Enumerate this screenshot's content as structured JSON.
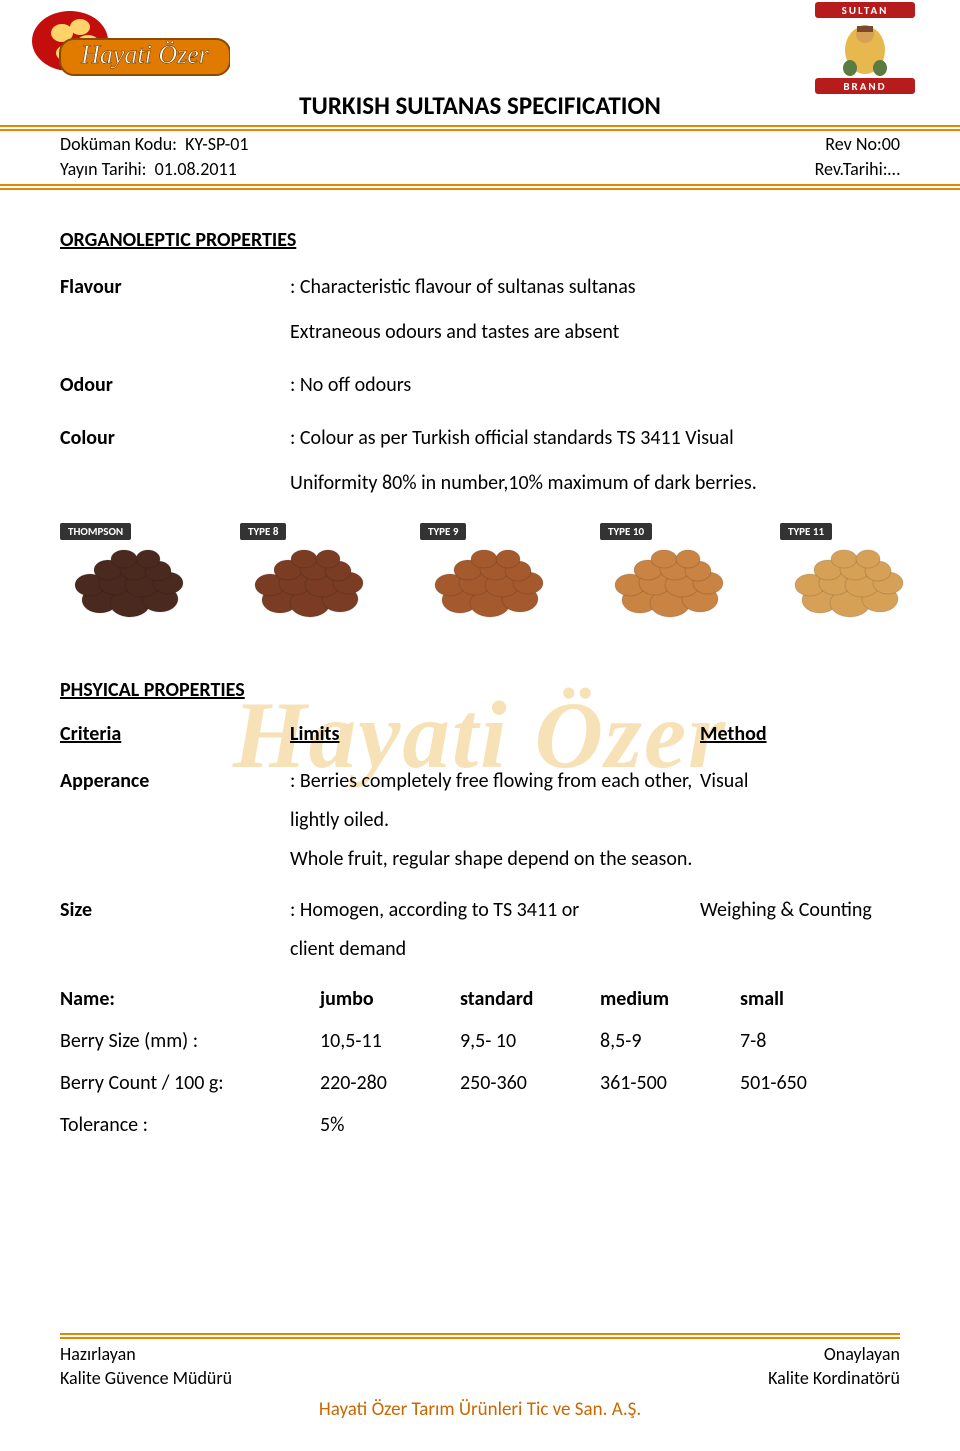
{
  "header": {
    "title": "TURKISH SULTANAS SPECIFICATION",
    "doc_code_label": "Doküman Kodu:",
    "doc_code": "KY-SP-01",
    "rev_no_label": "Rev No:",
    "rev_no": "00",
    "pub_date_label": "Yayın Tarihi:",
    "pub_date": "01.08.2011",
    "rev_date_label": "Rev.Tarihi:",
    "rev_date": "…",
    "logo_left": {
      "brand": "Hayati Özer",
      "bg_colors": [
        "#e07b00",
        "#c40d0d",
        "#ffd36a"
      ]
    },
    "logo_right": {
      "top": "SULTAN",
      "bottom": "BRAND",
      "banner_color": "#b71c1c",
      "figure_colors": [
        "#e7b84e",
        "#7a4a2a",
        "#5a7b42"
      ]
    }
  },
  "watermark_text": "Hayati Özer",
  "watermark_color": "rgba(230,165,30,0.32)",
  "organoleptic": {
    "title": "ORGANOLEPTIC PROPERTIES",
    "rows": [
      {
        "label": "Flavour",
        "value": ": Characteristic flavour of sultanas sultanas",
        "extra": "Extraneous odours and tastes are absent"
      },
      {
        "label": "Odour",
        "value": ": No off odours"
      },
      {
        "label": "Colour",
        "value": ": Colour as per Turkish official standards TS 3411 Visual",
        "extra": "Uniformity 80% in number,10% maximum of dark berries."
      }
    ]
  },
  "sultana_types": [
    {
      "label": "THOMPSON",
      "color": "#4a2a1f"
    },
    {
      "label": "TYPE 8",
      "color": "#7a3d24"
    },
    {
      "label": "TYPE 9",
      "color": "#a55a2e"
    },
    {
      "label": "TYPE 10",
      "color": "#c98342"
    },
    {
      "label": "TYPE 11",
      "color": "#d6a157"
    }
  ],
  "physical": {
    "title": "PHSYICAL PROPERTIES",
    "headers": {
      "c1": "Criteria",
      "c2": "Limits",
      "c3": "Method"
    },
    "rows": [
      {
        "label": "Apperance",
        "value": ": Berries completely free flowing from each other,",
        "method": "Visual",
        "extra1": "lightly oiled.",
        "extra2": "Whole fruit, regular shape depend on the season."
      },
      {
        "label": "Size",
        "value": ": Homogen, according to TS 3411 or",
        "method": "Weighing & Counting",
        "extra1": "client demand"
      }
    ]
  },
  "size_table": {
    "name_label": "Name:",
    "names": [
      "jumbo",
      "standard",
      "medium",
      "small"
    ],
    "rows": [
      {
        "label": "Berry Size (mm)    :",
        "values": [
          "10,5-11",
          "9,5- 10",
          "8,5-9",
          "7-8"
        ]
      },
      {
        "label": "Berry Count / 100 g:",
        "values": [
          "220-280",
          "250-360",
          "361-500",
          "501-650"
        ]
      },
      {
        "label": "Tolerance             :",
        "values": [
          "5%",
          "",
          "",
          ""
        ]
      }
    ]
  },
  "footer": {
    "left1": "Hazırlayan",
    "left2": "Kalite Güvence Müdürü",
    "right1": "Onaylayan",
    "right2": "Kalite Kordinatörü",
    "company": "Hayati Özer Tarım Ürünleri Tic ve San. A.Ş."
  },
  "colors": {
    "rule": "#e18a00",
    "company": "#c96800"
  }
}
